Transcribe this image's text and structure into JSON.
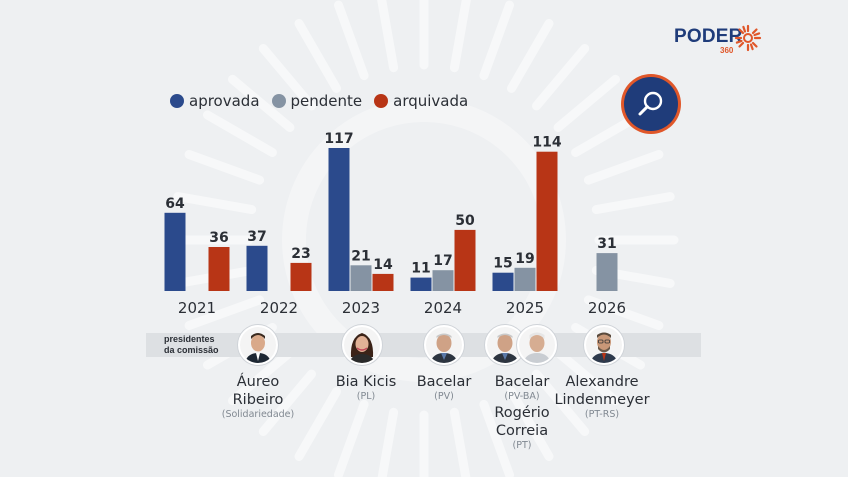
{
  "brand": {
    "name": "PODER",
    "sub": "360"
  },
  "legend": [
    {
      "label": "aprovada",
      "color": "#2b4a8c"
    },
    {
      "label": "pendente",
      "color": "#8593a3"
    },
    {
      "label": "arquivada",
      "color": "#b83516"
    }
  ],
  "search": {
    "icon": "search-icon"
  },
  "chart_data": {
    "type": "bar",
    "categories": [
      "2021",
      "2022",
      "2023",
      "2024",
      "2025",
      "2026"
    ],
    "series": [
      {
        "name": "aprovada",
        "color": "#2b4a8c",
        "values": [
          64,
          37,
          117,
          11,
          15,
          null
        ]
      },
      {
        "name": "pendente",
        "color": "#8593a3",
        "values": [
          null,
          null,
          21,
          17,
          19,
          31
        ]
      },
      {
        "name": "arquivada",
        "color": "#b83516",
        "values": [
          36,
          23,
          14,
          50,
          114,
          null
        ]
      }
    ],
    "ylim": [
      0,
      117
    ],
    "grid": false,
    "legend_position": "top-left"
  },
  "presidents": {
    "label": "presidentes\nda comissão",
    "people": [
      {
        "name": "Áureo\nRibeiro",
        "party": "(Solidariedade)"
      },
      {
        "name": "Bia Kicis",
        "party": "(PL)"
      },
      {
        "name": "Bacelar",
        "party": "(PV)"
      },
      {
        "name": "Bacelar",
        "party": "(PV-BA)"
      },
      {
        "name": "Rogério\nCorreia",
        "party": "(PT)"
      },
      {
        "name": "Alexandre\nLindenmeyer",
        "party": "(PT-RS)"
      }
    ]
  }
}
